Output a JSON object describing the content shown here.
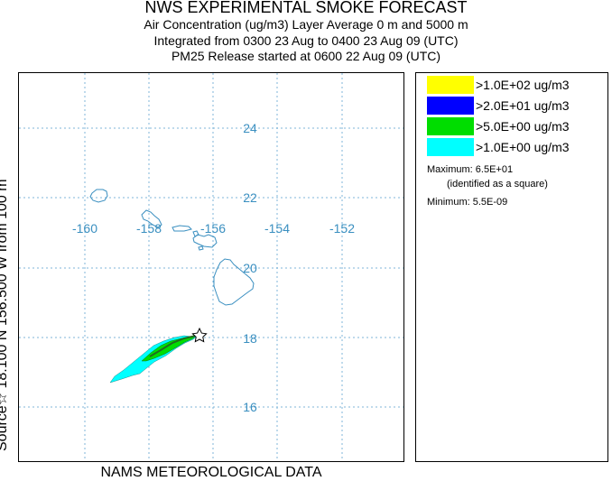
{
  "header": {
    "title": "NWS EXPERIMENTAL SMOKE FORECAST",
    "line1": "Air Concentration (ug/m3) Layer Average    0 m and  5000 m",
    "line2": "Integrated from 0300 23 Aug to 0400 23 Aug 09 (UTC)",
    "line3": "PM25 Release started at 0600 22 Aug 09 (UTC)"
  },
  "side_label": "Source☆ 18.100  N 156.500  W    from   100 m",
  "footer": "NAMS METEOROLOGICAL DATA",
  "map": {
    "lon_ticks": [
      "-160",
      "-158",
      "-156",
      "-154",
      "-152"
    ],
    "lat_ticks": [
      "24",
      "22",
      "20",
      "18",
      "16"
    ],
    "grid_color": "#7fb5d9",
    "label_color": "#3a8fc0",
    "coast_color": "#3a8fc0",
    "source_marker": "star-icon"
  },
  "legend": {
    "items": [
      {
        "label": ">1.0E+02 ug/m3",
        "color": "#ffff00"
      },
      {
        "label": ">2.0E+01 ug/m3",
        "color": "#0000ff"
      },
      {
        "label": ">5.0E+00 ug/m3",
        "color": "#00dd00"
      },
      {
        "label": ">1.0E+00 ug/m3",
        "color": "#00ffff"
      }
    ],
    "maximum": "Maximum: 6.5E+01",
    "maximum_note": "(identified as a square)",
    "minimum": "Minimum: 5.5E-09"
  }
}
